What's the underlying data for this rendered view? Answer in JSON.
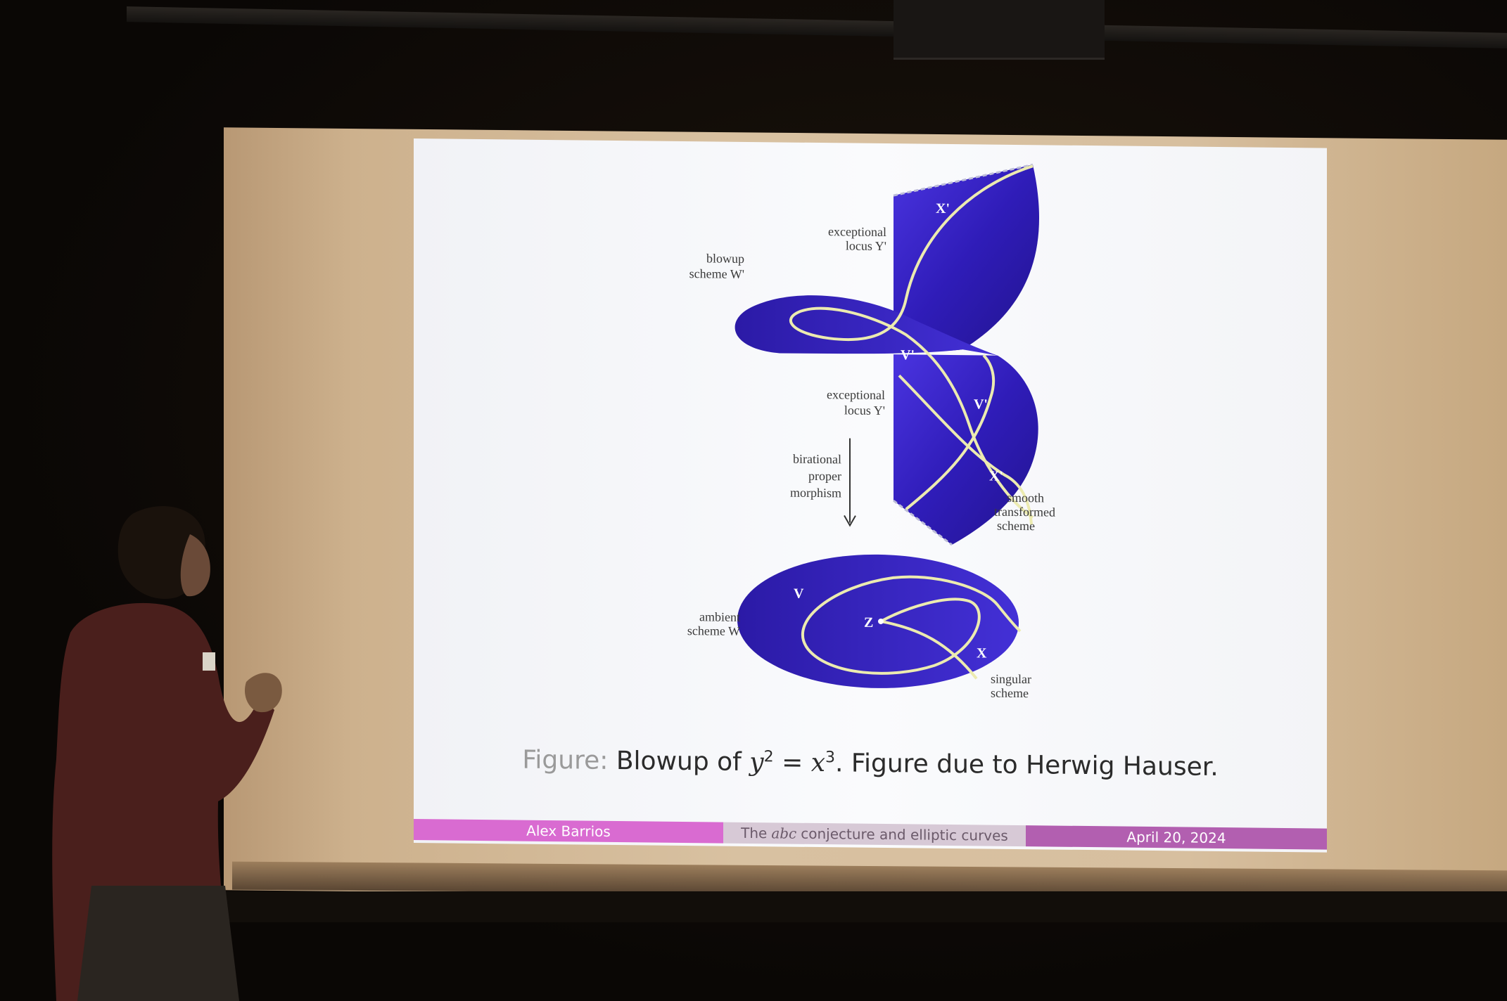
{
  "slide": {
    "figure_labels": {
      "exceptional_locus_top_1": "exceptional",
      "exceptional_locus_top_2": "locus Y'",
      "blowup_scheme_1": "blowup",
      "blowup_scheme_2": "scheme W'",
      "exceptional_locus_mid_1": "exceptional",
      "exceptional_locus_mid_2": "locus Y'",
      "birational_1": "birational",
      "birational_2": "proper",
      "birational_3": "morphism",
      "smooth_1": "smooth",
      "smooth_2": "transformed",
      "smooth_3": "scheme",
      "ambient_1": "ambient",
      "ambient_2": "scheme W",
      "singular_1": "singular",
      "singular_2": "scheme",
      "point_x_prime_top": "X'",
      "point_v_prime_top": "V'",
      "point_v_prime_mid": "V'",
      "point_x_prime_mid": "X'",
      "point_v": "V",
      "point_z": "Z",
      "point_x": "X"
    },
    "caption": {
      "prefix": "Figure:",
      "text_before": "Blowup of",
      "math_lhs": "y",
      "math_lhs_exp": "2",
      "math_eq": "=",
      "math_rhs": "x",
      "math_rhs_exp": "3",
      "text_after": ". Figure due to Herwig Hauser."
    },
    "footer": {
      "author": "Alex Barrios",
      "title_before": "The",
      "title_math": "abc",
      "title_after": "conjecture and elliptic curves",
      "date": "April 20, 2024"
    }
  },
  "colors": {
    "surface_blue": "#3a24c8",
    "curve_yellow": "#e8e6a0",
    "footer_pink": "#d96bd1",
    "footer_grey": "#d7c9d6",
    "footer_purple": "#b25fb0"
  }
}
